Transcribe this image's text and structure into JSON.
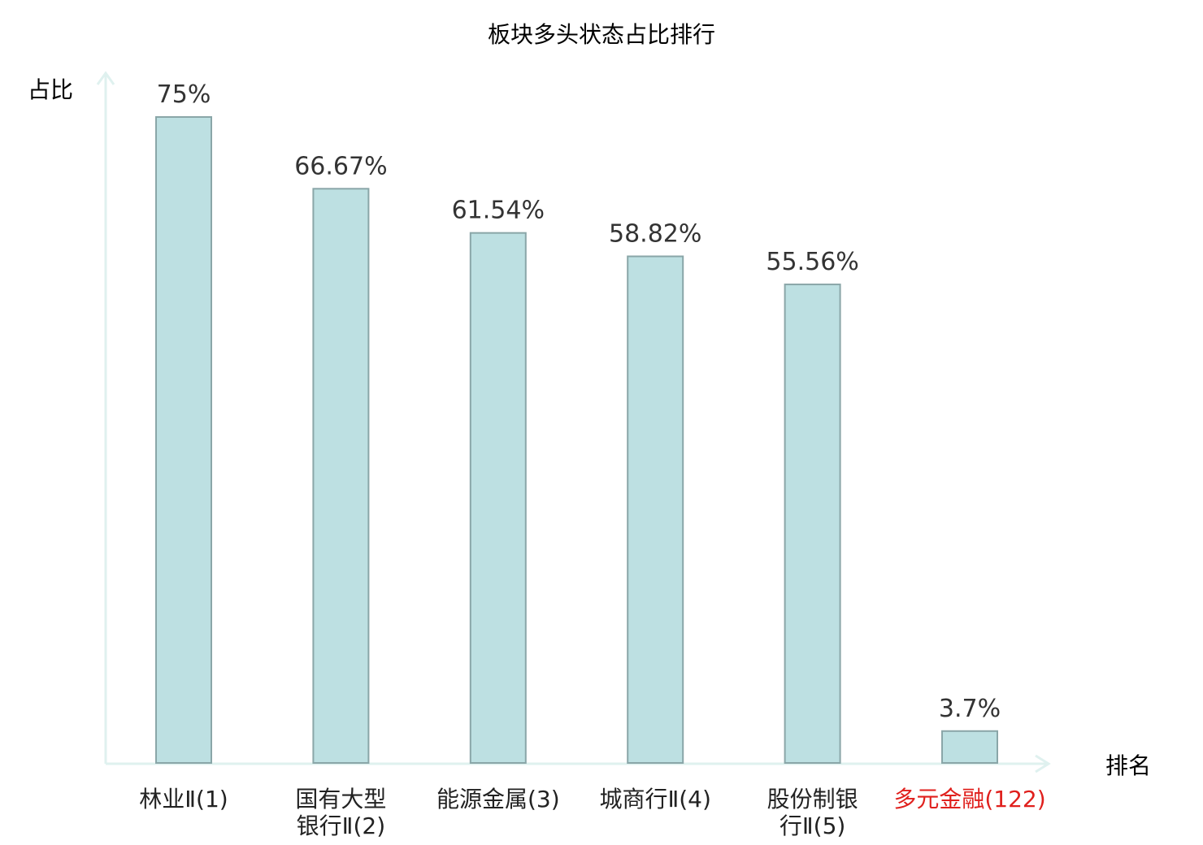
{
  "chart_data": {
    "type": "bar",
    "title": "板块多头状态占比排行",
    "ylabel": "占比",
    "xlabel": "排名",
    "ylim": [
      0,
      80
    ],
    "grid": false,
    "categories": [
      {
        "lines": [
          "林业Ⅱ(1)"
        ],
        "highlight": false
      },
      {
        "lines": [
          "国有大型",
          "银行Ⅱ(2)"
        ],
        "highlight": false
      },
      {
        "lines": [
          "能源金属(3)"
        ],
        "highlight": false
      },
      {
        "lines": [
          "城商行Ⅱ(4)"
        ],
        "highlight": false
      },
      {
        "lines": [
          "股份制银",
          "行Ⅱ(5)"
        ],
        "highlight": false
      },
      {
        "lines": [
          "多元金融(122)"
        ],
        "highlight": true
      }
    ],
    "values": [
      75,
      66.67,
      61.54,
      58.82,
      55.56,
      3.7
    ],
    "data_labels": [
      "75%",
      "66.67%",
      "61.54%",
      "58.82%",
      "55.56%",
      "3.7%"
    ],
    "colors": {
      "bar_fill": "#bde0e2",
      "bar_stroke": "#8aa6a8",
      "axis": "#dff1ef",
      "highlight_text": "#e0201d",
      "text": "#222222"
    }
  }
}
